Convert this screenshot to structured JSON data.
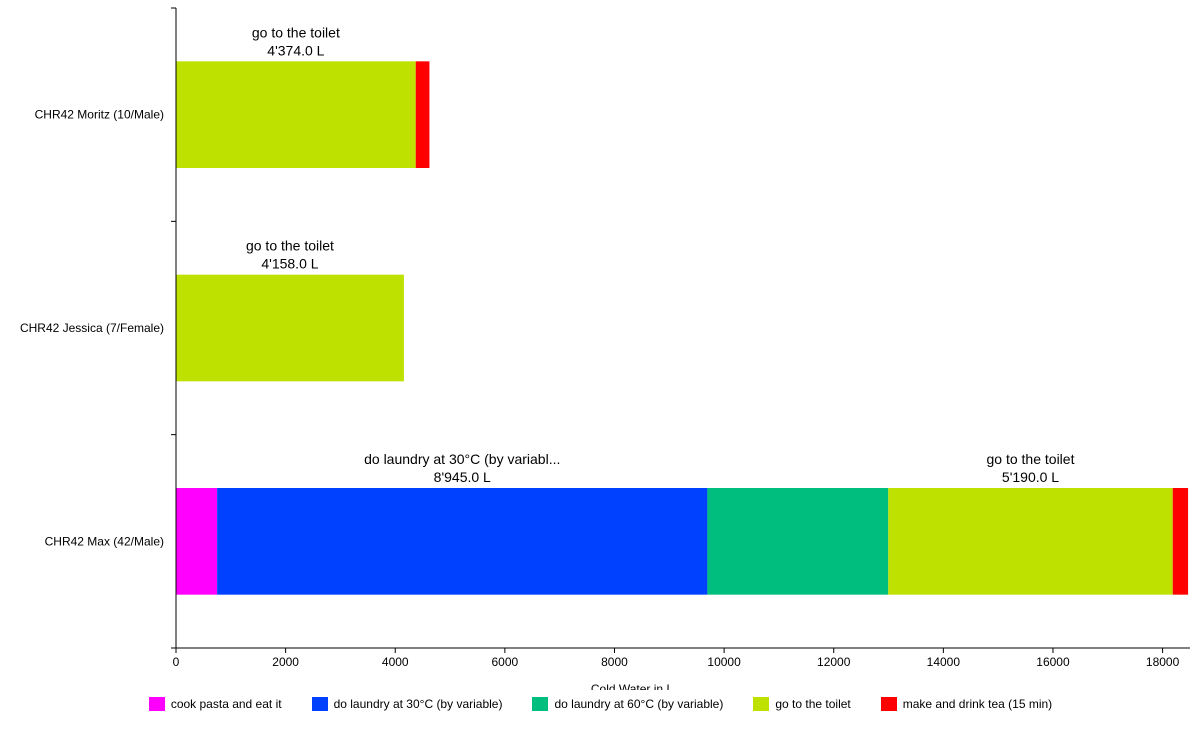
{
  "chart_data": {
    "type": "bar",
    "orientation": "horizontal",
    "stacked": true,
    "xlabel": "Cold Water in L",
    "xlim": [
      0,
      18500
    ],
    "xticks": [
      0,
      2000,
      4000,
      6000,
      8000,
      10000,
      12000,
      14000,
      16000,
      18000
    ],
    "grid": false,
    "legend_position": "bottom",
    "categories": [
      "CHR42 Moritz (10/Male)",
      "CHR42 Jessica (7/Female)",
      "CHR42 Max (42/Male)"
    ],
    "series": [
      {
        "name": "cook pasta and eat it",
        "color": "#ff00ff",
        "values": [
          0,
          0,
          750
        ]
      },
      {
        "name": "do laundry at 30°C (by variable)",
        "color": "#0041ff",
        "values": [
          0,
          0,
          8945
        ]
      },
      {
        "name": "do laundry at 60°C (by variable)",
        "color": "#00be7d",
        "values": [
          0,
          0,
          3300
        ]
      },
      {
        "name": "go to the toilet",
        "color": "#bee100",
        "values": [
          4374,
          4158,
          5190
        ]
      },
      {
        "name": "make and drink tea (15 min)",
        "color": "#ff0000",
        "values": [
          250,
          0,
          280
        ]
      }
    ],
    "annotations": [
      {
        "category": 0,
        "series": 3,
        "line1": "go to the toilet",
        "line2": "4'374.0 L"
      },
      {
        "category": 1,
        "series": 3,
        "line1": "go to the toilet",
        "line2": "4'158.0 L"
      },
      {
        "category": 2,
        "series": 1,
        "line1": "do laundry at 30°C (by variabl...",
        "line2": "8'945.0 L"
      },
      {
        "category": 2,
        "series": 3,
        "line1": "go to the toilet",
        "line2": "5'190.0 L"
      }
    ]
  }
}
